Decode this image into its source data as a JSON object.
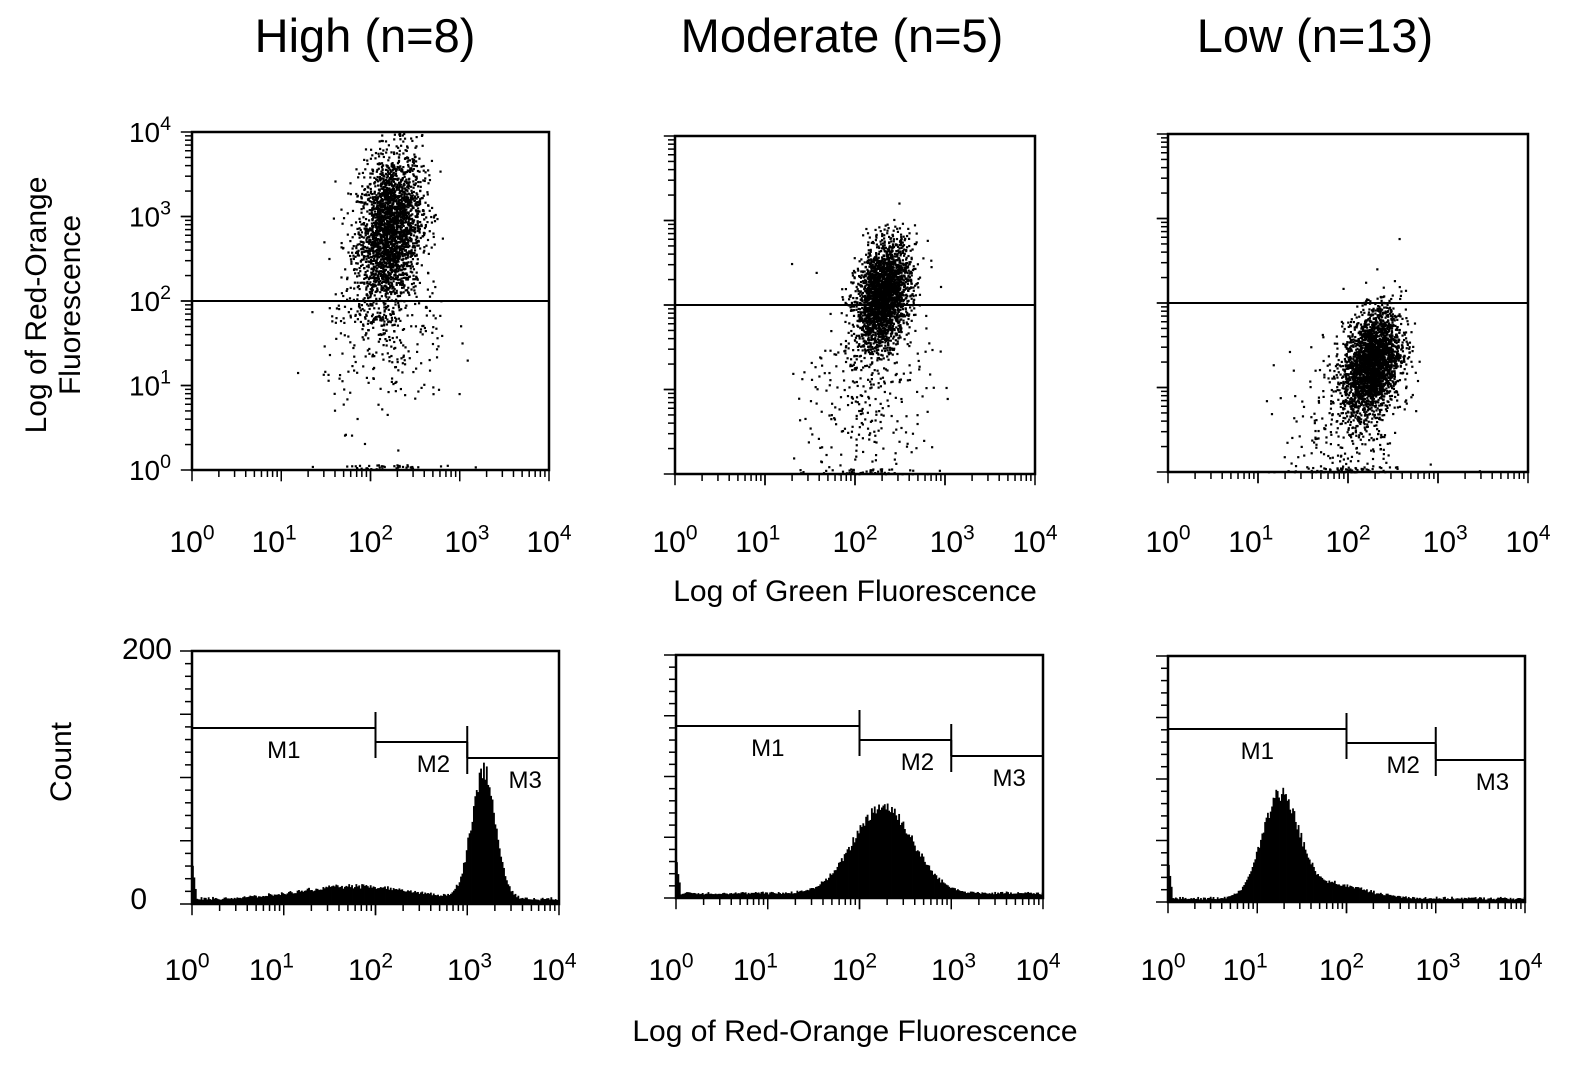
{
  "chart_data": {
    "type": "multi-panel flow cytometry",
    "column_titles": [
      "High (n=8)",
      "Moderate (n=5)",
      "Low (n=13)"
    ],
    "scatter": {
      "type": "scatter",
      "xlabel": "Log of Green Fluorescence",
      "ylabel": "Log of Red-Orange Fluorescence",
      "log_scale": true,
      "xlim": [
        1,
        10000
      ],
      "ylim": [
        1,
        10000
      ],
      "ticks": [
        {
          "base": "10",
          "exp": "0"
        },
        {
          "base": "10",
          "exp": "1"
        },
        {
          "base": "10",
          "exp": "2"
        },
        {
          "base": "10",
          "exp": "3"
        },
        {
          "base": "10",
          "exp": "4"
        }
      ],
      "gate_line_y": 100,
      "panels": [
        {
          "name": "High (n=8)",
          "cluster_center": [
            160,
            700
          ],
          "cluster_spread_log": [
            0.18,
            0.45
          ],
          "tail_center": [
            150,
            40
          ]
        },
        {
          "name": "Moderate (n=5)",
          "cluster_center": [
            200,
            130
          ],
          "cluster_spread_log": [
            0.15,
            0.3
          ],
          "tail_center": [
            130,
            8
          ]
        },
        {
          "name": "Low (n=13)",
          "cluster_center": [
            180,
            20
          ],
          "cluster_spread_log": [
            0.16,
            0.3
          ],
          "tail_center": [
            90,
            3
          ]
        }
      ]
    },
    "histogram": {
      "type": "histogram",
      "xlabel": "Log of Red-Orange Fluorescence",
      "ylabel": "Count",
      "log_scale": true,
      "xlim": [
        1,
        10000
      ],
      "ylim": [
        0,
        200
      ],
      "y_ticks": [
        "0",
        "200"
      ],
      "markers": [
        {
          "label": "M1",
          "range": [
            1,
            100
          ]
        },
        {
          "label": "M2",
          "range": [
            100,
            1000
          ]
        },
        {
          "label": "M3",
          "range": [
            1000,
            10000
          ]
        }
      ],
      "panels": [
        {
          "name": "High (n=8)",
          "peaks": [
            {
              "center": 1500,
              "height": 100,
              "width_log": 0.13
            },
            {
              "center": 60,
              "height": 10,
              "width_log": 0.6
            }
          ],
          "baseline": 3
        },
        {
          "name": "Moderate (n=5)",
          "peaks": [
            {
              "center": 180,
              "height": 72,
              "width_log": 0.32
            }
          ],
          "baseline": 3
        },
        {
          "name": "Low (n=13)",
          "peaks": [
            {
              "center": 18,
              "height": 80,
              "width_log": 0.2
            },
            {
              "center": 60,
              "height": 12,
              "width_log": 0.4
            }
          ],
          "baseline": 2
        }
      ]
    }
  }
}
